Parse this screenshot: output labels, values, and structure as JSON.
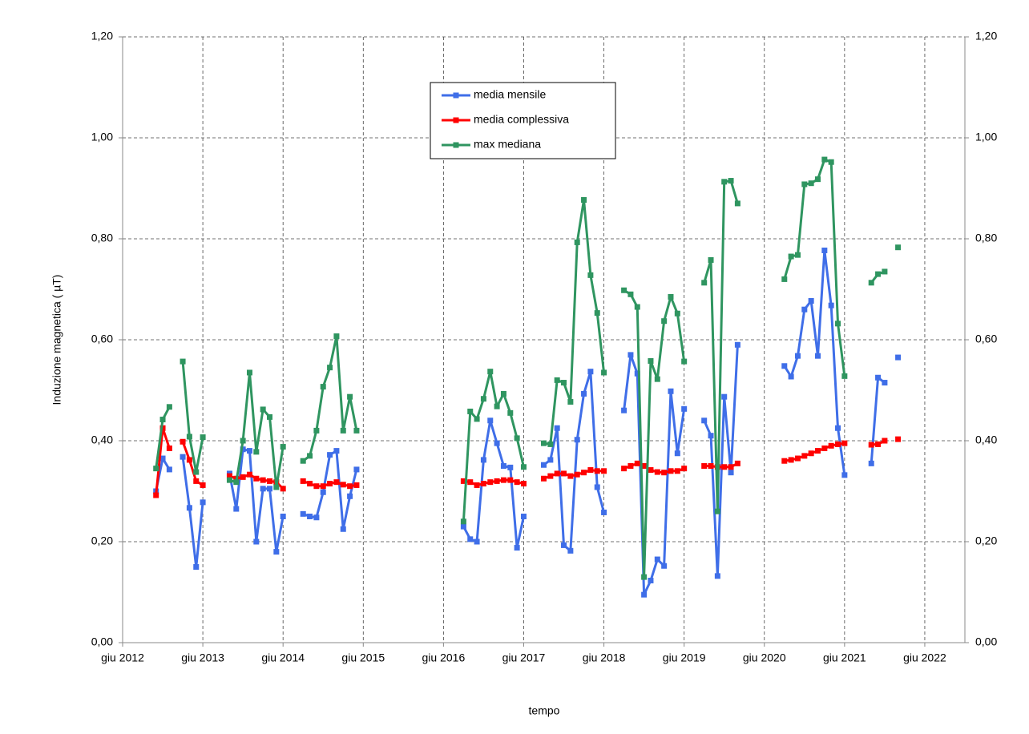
{
  "chart_data": {
    "type": "line",
    "y_label": "Induzione magnetica ( µT)",
    "x_label": "tempo",
    "x": [
      "2012-11",
      "2012-12",
      "2013-01",
      "2013-02",
      "2013-03",
      "2013-04",
      "2013-05",
      "2013-06",
      "2013-07",
      "2013-10",
      "2013-11",
      "2013-12",
      "2014-01",
      "2014-02",
      "2014-03",
      "2014-04",
      "2014-05",
      "2014-06",
      "2014-07",
      "2014-09",
      "2014-10",
      "2014-11",
      "2014-12",
      "2015-01",
      "2015-02",
      "2015-03",
      "2015-04",
      "2015-05",
      "2015-06",
      "2016-09",
      "2016-10",
      "2016-11",
      "2016-12",
      "2017-01",
      "2017-02",
      "2017-03",
      "2017-04",
      "2017-05",
      "2017-06",
      "2017-07",
      "2017-09",
      "2017-10",
      "2017-11",
      "2017-12",
      "2018-01",
      "2018-02",
      "2018-03",
      "2018-04",
      "2018-05",
      "2018-06",
      "2018-07",
      "2018-09",
      "2018-10",
      "2018-11",
      "2018-12",
      "2019-01",
      "2019-02",
      "2019-03",
      "2019-04",
      "2019-05",
      "2019-06",
      "2019-07",
      "2019-09",
      "2019-10",
      "2019-11",
      "2019-12",
      "2020-01",
      "2020-02",
      "2020-03",
      "2020-09",
      "2020-10",
      "2020-11",
      "2020-12",
      "2021-01",
      "2021-02",
      "2021-03",
      "2021-04",
      "2021-05",
      "2021-06",
      "2021-07",
      "2021-10",
      "2021-11",
      "2021-12",
      "2022-01",
      "2022-02"
    ],
    "series": [
      {
        "name": "media mensile",
        "color": "#3f6ee8",
        "values": [
          0.3,
          0.365,
          0.343,
          null,
          0.368,
          0.267,
          0.15,
          0.278,
          null,
          0.335,
          0.265,
          0.383,
          0.38,
          0.2,
          0.305,
          0.305,
          0.18,
          0.25,
          null,
          0.255,
          0.25,
          0.248,
          0.298,
          0.372,
          0.38,
          0.225,
          0.29,
          0.343,
          null,
          0.23,
          0.205,
          0.2,
          0.362,
          0.44,
          0.395,
          0.35,
          0.347,
          0.188,
          0.25,
          null,
          0.352,
          0.362,
          0.425,
          0.193,
          0.182,
          0.402,
          0.493,
          0.537,
          0.308,
          0.258,
          null,
          0.46,
          0.57,
          0.533,
          0.095,
          0.123,
          0.165,
          0.152,
          0.498,
          0.375,
          0.463,
          null,
          0.44,
          0.41,
          0.132,
          0.487,
          0.337,
          0.59,
          null,
          0.548,
          0.527,
          0.568,
          0.66,
          0.677,
          0.568,
          0.777,
          0.668,
          0.425,
          0.332,
          null,
          0.355,
          0.525,
          0.515,
          null,
          0.565
        ]
      },
      {
        "name": "media complessiva",
        "color": "#ff0000",
        "values": [
          0.292,
          0.425,
          0.385,
          null,
          0.398,
          0.362,
          0.32,
          0.312,
          null,
          0.33,
          0.325,
          0.328,
          0.333,
          0.325,
          0.322,
          0.32,
          0.318,
          0.305,
          null,
          0.32,
          0.315,
          0.31,
          0.31,
          0.315,
          0.318,
          0.313,
          0.31,
          0.312,
          null,
          0.32,
          0.318,
          0.312,
          0.315,
          0.318,
          0.32,
          0.322,
          0.322,
          0.318,
          0.315,
          null,
          0.325,
          0.33,
          0.335,
          0.335,
          0.33,
          0.333,
          0.337,
          0.342,
          0.34,
          0.34,
          null,
          0.345,
          0.35,
          0.355,
          0.35,
          0.342,
          0.338,
          0.337,
          0.34,
          0.34,
          0.345,
          null,
          0.35,
          0.35,
          0.348,
          0.348,
          0.348,
          0.355,
          null,
          0.36,
          0.362,
          0.365,
          0.37,
          0.375,
          0.38,
          0.385,
          0.39,
          0.393,
          0.395,
          null,
          0.392,
          0.393,
          0.4,
          null,
          0.403
        ]
      },
      {
        "name": "max mediana",
        "color": "#2f9560",
        "values": [
          0.345,
          0.442,
          0.467,
          null,
          0.557,
          0.408,
          0.338,
          0.407,
          null,
          0.322,
          0.318,
          0.4,
          0.535,
          0.378,
          0.462,
          0.447,
          0.308,
          0.388,
          null,
          0.36,
          0.37,
          0.42,
          0.507,
          0.545,
          0.607,
          0.42,
          0.487,
          0.42,
          null,
          0.24,
          0.458,
          0.443,
          0.483,
          0.537,
          0.468,
          0.493,
          0.455,
          0.405,
          0.348,
          null,
          0.395,
          0.393,
          0.52,
          0.515,
          0.477,
          0.793,
          0.877,
          0.728,
          0.653,
          0.535,
          null,
          0.698,
          0.69,
          0.665,
          0.13,
          0.558,
          0.522,
          0.637,
          0.685,
          0.652,
          0.557,
          null,
          0.713,
          0.758,
          0.26,
          0.913,
          0.915,
          0.87,
          null,
          0.72,
          0.765,
          0.768,
          0.908,
          0.91,
          0.918,
          0.957,
          0.952,
          0.632,
          0.528,
          null,
          0.713,
          0.73,
          0.735,
          null,
          0.783
        ]
      }
    ],
    "xlim": [
      "2012-06",
      "2022-12"
    ],
    "xticks": [
      {
        "value": "2012-06",
        "label": "giu 2012"
      },
      {
        "value": "2013-06",
        "label": "giu 2013"
      },
      {
        "value": "2014-06",
        "label": "giu 2014"
      },
      {
        "value": "2015-06",
        "label": "giu 2015"
      },
      {
        "value": "2016-06",
        "label": "giu 2016"
      },
      {
        "value": "2017-06",
        "label": "giu 2017"
      },
      {
        "value": "2018-06",
        "label": "giu 2018"
      },
      {
        "value": "2019-06",
        "label": "giu 2019"
      },
      {
        "value": "2020-06",
        "label": "giu 2020"
      },
      {
        "value": "2021-06",
        "label": "giu 2021"
      },
      {
        "value": "2022-06",
        "label": "giu 2022"
      }
    ],
    "ylim": [
      0,
      1.2
    ],
    "yticks": [
      {
        "value": 0,
        "label": "0,00"
      },
      {
        "value": 0.2,
        "label": "0,20"
      },
      {
        "value": 0.4,
        "label": "0,40"
      },
      {
        "value": 0.6,
        "label": "0,60"
      },
      {
        "value": 0.8,
        "label": "0,80"
      },
      {
        "value": 1.0,
        "label": "1,00"
      },
      {
        "value": 1.2,
        "label": "1,20"
      }
    ],
    "y2lim": [
      0,
      1.2
    ],
    "y2ticks": [
      {
        "value": 0,
        "label": "0,00"
      },
      {
        "value": 0.2,
        "label": "0,20"
      },
      {
        "value": 0.4,
        "label": "0,40"
      },
      {
        "value": 0.6,
        "label": "0,60"
      },
      {
        "value": 0.8,
        "label": "0,80"
      },
      {
        "value": 1.0,
        "label": "1,00"
      },
      {
        "value": 1.2,
        "label": "1,20"
      }
    ],
    "grid": true,
    "legend": "top-center"
  }
}
